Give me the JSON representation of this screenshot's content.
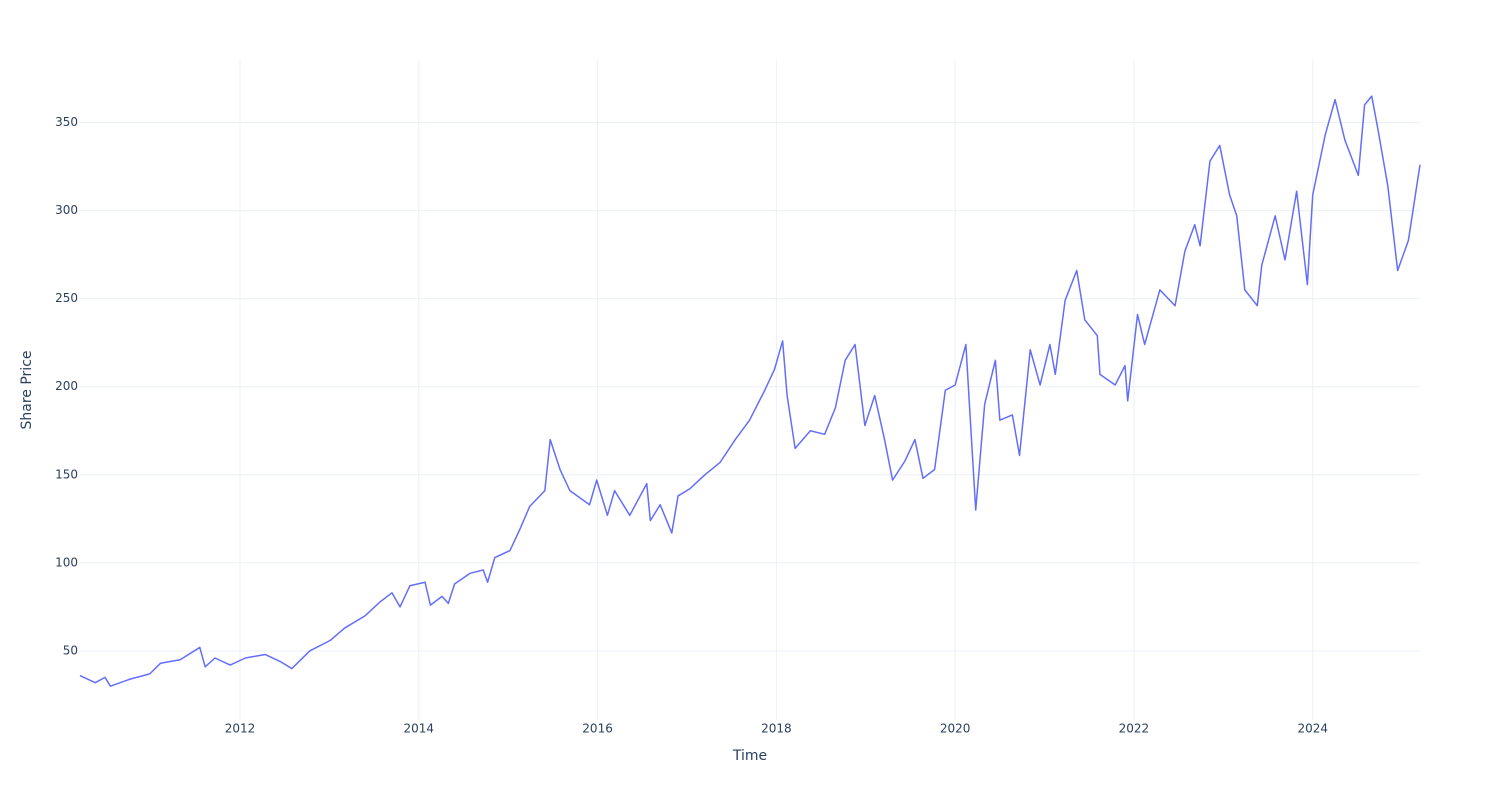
{
  "chart_data": {
    "type": "line",
    "x_label": "Time",
    "y_label": "Share Price",
    "x": [
      2010.21,
      2010.38,
      2010.49,
      2010.55,
      2010.77,
      2010.99,
      2011.11,
      2011.33,
      2011.55,
      2011.61,
      2011.72,
      2011.89,
      2012.06,
      2012.28,
      2012.45,
      2012.58,
      2012.78,
      2013.01,
      2013.17,
      2013.4,
      2013.57,
      2013.7,
      2013.79,
      2013.9,
      2014.07,
      2014.13,
      2014.26,
      2014.33,
      2014.4,
      2014.57,
      2014.72,
      2014.77,
      2014.85,
      2015.02,
      2015.13,
      2015.24,
      2015.41,
      2015.47,
      2015.58,
      2015.69,
      2015.91,
      2015.99,
      2016.11,
      2016.19,
      2016.36,
      2016.55,
      2016.59,
      2016.7,
      2016.83,
      2016.9,
      2017.03,
      2017.2,
      2017.37,
      2017.54,
      2017.7,
      2017.87,
      2017.98,
      2018.07,
      2018.12,
      2018.21,
      2018.38,
      2018.54,
      2018.66,
      2018.77,
      2018.88,
      2018.99,
      2019.1,
      2019.21,
      2019.3,
      2019.44,
      2019.55,
      2019.64,
      2019.77,
      2019.89,
      2020.0,
      2020.12,
      2020.17,
      2020.23,
      2020.33,
      2020.45,
      2020.5,
      2020.64,
      2020.72,
      2020.84,
      2020.95,
      2021.06,
      2021.12,
      2021.23,
      2021.36,
      2021.45,
      2021.59,
      2021.62,
      2021.79,
      2021.9,
      2021.93,
      2022.04,
      2022.12,
      2022.29,
      2022.46,
      2022.57,
      2022.68,
      2022.74,
      2022.85,
      2022.96,
      2023.07,
      2023.15,
      2023.24,
      2023.38,
      2023.43,
      2023.58,
      2023.69,
      2023.82,
      2023.94,
      2024.0,
      2024.14,
      2024.25,
      2024.36,
      2024.51,
      2024.58,
      2024.66,
      2024.73,
      2024.84,
      2024.95,
      2025.07,
      2025.2
    ],
    "series": [
      {
        "name": "Share Price",
        "color": "#636efa",
        "values": [
          36,
          32,
          35,
          30,
          34,
          37,
          43,
          45,
          52,
          41,
          46,
          42,
          46,
          48,
          44,
          40,
          50,
          56,
          63,
          70,
          78,
          83,
          75,
          87,
          89,
          76,
          81,
          77,
          88,
          94,
          96,
          89,
          103,
          107,
          119,
          132,
          141,
          170,
          153,
          141,
          133,
          147,
          127,
          141,
          127,
          145,
          124,
          133,
          117,
          138,
          142,
          150,
          157,
          170,
          181,
          198,
          210,
          226,
          195,
          165,
          175,
          173,
          188,
          215,
          224,
          178,
          195,
          170,
          147,
          158,
          170,
          148,
          153,
          198,
          201,
          224,
          181,
          130,
          190,
          215,
          181,
          184,
          161,
          221,
          201,
          224,
          207,
          249,
          266,
          238,
          229,
          207,
          201,
          212,
          192,
          241,
          224,
          255,
          246,
          277,
          292,
          280,
          328,
          337,
          309,
          297,
          255,
          246,
          269,
          297,
          272,
          311,
          258,
          309,
          343,
          363,
          340,
          320,
          360,
          365,
          346,
          314,
          266,
          283,
          326
        ]
      }
    ],
    "xlim": [
      2010.21,
      2025.2
    ],
    "xticks": [
      2012,
      2014,
      2016,
      2018,
      2020,
      2022,
      2024
    ],
    "ylim": [
      10.8,
      385.5
    ],
    "yticks": [
      50,
      100,
      150,
      200,
      250,
      300,
      350
    ],
    "grid": true
  }
}
